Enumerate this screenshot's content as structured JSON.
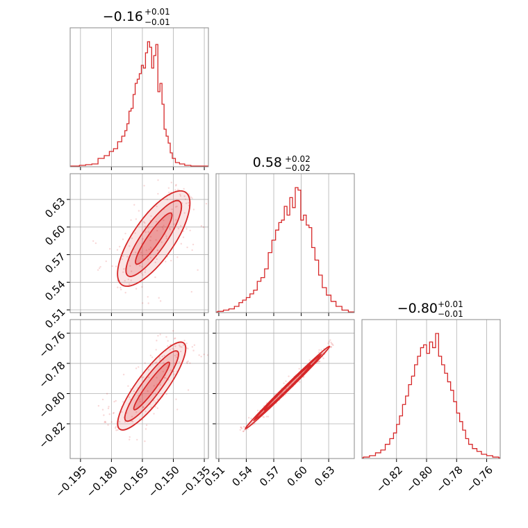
{
  "accent_color": "#d62728",
  "chart_data": [
    {
      "type": "histogram",
      "panel": "p1-marginal",
      "title_main": "−0.16",
      "title_sup": "+0.01",
      "title_sub": "−0.01",
      "xlim": [
        -0.2,
        -0.133
      ],
      "bins_x": [
        -0.197,
        -0.194,
        -0.191,
        -0.188,
        -0.185,
        -0.182,
        -0.18,
        -0.178,
        -0.176,
        -0.174,
        -0.173,
        -0.172,
        -0.171,
        -0.17,
        -0.169,
        -0.168,
        -0.167,
        -0.166,
        -0.165,
        -0.164,
        -0.163,
        -0.162,
        -0.161,
        -0.16,
        -0.159,
        -0.158,
        -0.157,
        -0.156,
        -0.155,
        -0.154,
        -0.153,
        -0.152,
        -0.151,
        -0.15,
        -0.148,
        -0.146,
        -0.143,
        -0.14,
        -0.137
      ],
      "counts": [
        0.5,
        1,
        1.5,
        2,
        6,
        8,
        11,
        13,
        18,
        22,
        26,
        31,
        40,
        42,
        52,
        60,
        63,
        67,
        73,
        71,
        82,
        90,
        86,
        71,
        80,
        88,
        54,
        60,
        45,
        27,
        22,
        17,
        10,
        6,
        3,
        2,
        1,
        0.5,
        0.5
      ]
    },
    {
      "type": "histogram",
      "panel": "p2-marginal",
      "title_main": "0.58",
      "title_sup": "+0.02",
      "title_sub": "−0.02",
      "xlim": [
        0.507,
        0.658
      ],
      "bins_x": [
        0.512,
        0.518,
        0.524,
        0.53,
        0.534,
        0.538,
        0.542,
        0.546,
        0.55,
        0.554,
        0.558,
        0.562,
        0.566,
        0.57,
        0.574,
        0.577,
        0.58,
        0.583,
        0.586,
        0.589,
        0.592,
        0.595,
        0.598,
        0.601,
        0.604,
        0.607,
        0.61,
        0.613,
        0.617,
        0.621,
        0.625,
        0.63,
        0.635,
        0.641,
        0.648
      ],
      "counts": [
        1,
        2,
        3,
        5,
        8,
        10,
        12,
        15,
        18,
        25,
        28,
        35,
        48,
        58,
        66,
        72,
        74,
        85,
        78,
        92,
        84,
        100,
        98,
        74,
        78,
        70,
        68,
        52,
        42,
        30,
        20,
        14,
        9,
        5,
        2
      ]
    },
    {
      "type": "histogram",
      "panel": "p3-marginal",
      "title_main": "−0.80",
      "title_sup": "+0.01",
      "title_sub": "−0.01",
      "xlim": [
        -0.843,
        -0.751
      ],
      "bins_x": [
        -0.84,
        -0.836,
        -0.832,
        -0.829,
        -0.826,
        -0.823,
        -0.821,
        -0.819,
        -0.817,
        -0.815,
        -0.813,
        -0.811,
        -0.809,
        -0.807,
        -0.805,
        -0.803,
        -0.801,
        -0.799,
        -0.797,
        -0.795,
        -0.793,
        -0.791,
        -0.789,
        -0.787,
        -0.785,
        -0.783,
        -0.781,
        -0.779,
        -0.777,
        -0.775,
        -0.773,
        -0.771,
        -0.768,
        -0.765,
        -0.762,
        -0.758,
        -0.754
      ],
      "counts": [
        1,
        2,
        4,
        6,
        10,
        14,
        18,
        24,
        30,
        38,
        44,
        52,
        58,
        66,
        72,
        78,
        80,
        74,
        82,
        78,
        88,
        72,
        66,
        60,
        54,
        48,
        40,
        32,
        26,
        20,
        14,
        10,
        7,
        5,
        3,
        2,
        1
      ]
    },
    {
      "type": "contour+scatter",
      "panel": "p1-vs-p2",
      "xlim": [
        -0.2,
        -0.133
      ],
      "ylim": [
        0.507,
        0.658
      ],
      "line": {
        "x0": -0.172,
        "y0": 0.547,
        "x1": -0.147,
        "y1": 0.628
      },
      "levels_half_width": [
        0.003,
        0.006,
        0.01
      ]
    },
    {
      "type": "contour+scatter",
      "panel": "p1-vs-p3",
      "xlim": [
        -0.2,
        -0.133
      ],
      "ylim": [
        -0.843,
        -0.751
      ],
      "line": {
        "x0": -0.173,
        "y0": -0.818,
        "x1": -0.148,
        "y1": -0.772
      },
      "levels_half_width": [
        0.0022,
        0.0045,
        0.007
      ]
    },
    {
      "type": "contour+scatter",
      "panel": "p2-vs-p3",
      "xlim": [
        0.507,
        0.658
      ],
      "ylim": [
        -0.843,
        -0.751
      ],
      "line": {
        "x0": 0.548,
        "y0": -0.818,
        "x1": 0.622,
        "y1": -0.774
      },
      "levels_half_width": [
        0.0008,
        0.0016,
        0.0028
      ]
    }
  ],
  "axes": {
    "p1_ticks": [
      "−0.195",
      "−0.180",
      "−0.165",
      "−0.150",
      "−0.135"
    ],
    "p1_tick_values": [
      -0.195,
      -0.18,
      -0.165,
      -0.15,
      -0.135
    ],
    "p2_ticks": [
      "0.51",
      "0.54",
      "0.57",
      "0.60",
      "0.63"
    ],
    "p2_tick_values": [
      0.51,
      0.54,
      0.57,
      0.6,
      0.63
    ],
    "p3_ticks": [
      "−0.82",
      "−0.80",
      "−0.78",
      "−0.76"
    ],
    "p3_tick_values": [
      -0.82,
      -0.8,
      -0.78,
      -0.76
    ]
  }
}
